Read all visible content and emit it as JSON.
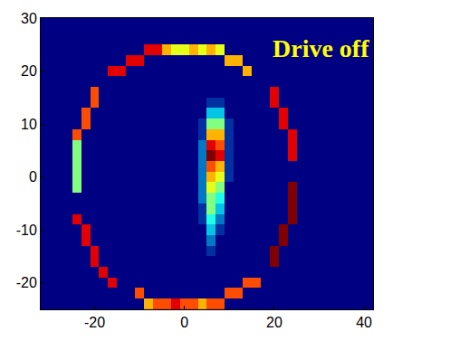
{
  "chart_data": {
    "type": "heatmap",
    "annotation": "Drive off",
    "xlim": [
      -32,
      42
    ],
    "ylim": [
      -25,
      30
    ],
    "xticks": [
      -20,
      0,
      20,
      40
    ],
    "yticks": [
      -20,
      -10,
      0,
      10,
      20,
      30
    ],
    "grid": false,
    "x": [
      -30,
      -28,
      -26,
      -24,
      -22,
      -20,
      -18,
      -16,
      -14,
      -12,
      -10,
      -8,
      -6,
      -4,
      -2,
      0,
      2,
      4,
      6,
      8,
      10,
      12,
      14,
      16,
      18,
      20,
      22,
      24,
      26,
      28,
      30,
      32,
      34,
      36,
      38,
      40
    ],
    "y": [
      -24,
      -22,
      -20,
      -18,
      -16,
      -14,
      -12,
      -10,
      -8,
      -6,
      -4,
      -2,
      0,
      2,
      4,
      6,
      8,
      10,
      12,
      14,
      16,
      18,
      20,
      22,
      24,
      26,
      28
    ],
    "cells": [
      [
        0,
        0,
        0,
        0,
        0,
        0,
        0,
        0,
        0,
        0,
        0,
        7,
        8,
        8,
        9,
        8,
        8,
        7,
        8,
        8,
        0,
        0,
        0,
        0,
        0,
        0,
        0,
        0,
        0,
        0,
        0,
        0,
        0,
        0,
        0,
        0
      ],
      [
        0,
        0,
        0,
        0,
        0,
        0,
        0,
        0,
        0,
        0,
        8,
        0,
        0,
        0,
        0,
        0,
        0,
        0,
        0,
        0,
        8,
        8,
        0,
        0,
        0,
        0,
        0,
        0,
        0,
        0,
        0,
        0,
        0,
        0,
        0,
        0
      ],
      [
        0,
        0,
        0,
        0,
        0,
        0,
        0,
        9,
        0,
        0,
        0,
        0,
        0,
        0,
        0,
        0,
        0,
        0,
        0,
        0,
        0,
        0,
        8,
        8,
        0,
        0,
        0,
        0,
        0,
        0,
        0,
        0,
        0,
        0,
        0,
        0
      ],
      [
        0,
        0,
        0,
        0,
        0,
        0,
        9,
        0,
        0,
        0,
        0,
        0,
        0,
        0,
        0,
        0,
        0,
        0,
        0,
        0,
        0,
        0,
        0,
        0,
        0,
        0,
        0,
        0,
        0,
        0,
        0,
        0,
        0,
        0,
        0,
        0
      ],
      [
        0,
        0,
        0,
        0,
        0,
        9,
        0,
        0,
        0,
        0,
        0,
        0,
        0,
        0,
        0,
        0,
        0,
        0,
        0,
        0,
        0,
        0,
        0,
        0,
        0,
        10,
        0,
        0,
        0,
        0,
        0,
        0,
        0,
        0,
        0,
        0
      ],
      [
        0,
        0,
        0,
        0,
        0,
        9,
        0,
        0,
        0,
        0,
        0,
        0,
        0,
        0,
        0,
        0,
        0,
        0,
        1,
        0,
        0,
        0,
        0,
        0,
        0,
        10,
        0,
        0,
        0,
        0,
        0,
        0,
        0,
        0,
        0,
        0
      ],
      [
        0,
        0,
        0,
        0,
        9,
        0,
        0,
        0,
        0,
        0,
        0,
        0,
        0,
        0,
        0,
        0,
        0,
        0,
        2,
        0,
        0,
        0,
        0,
        0,
        0,
        0,
        10,
        0,
        0,
        0,
        0,
        0,
        0,
        0,
        0,
        0
      ],
      [
        0,
        0,
        0,
        0,
        9,
        0,
        0,
        0,
        0,
        0,
        0,
        0,
        0,
        0,
        0,
        0,
        0,
        0,
        3,
        1,
        0,
        0,
        0,
        0,
        0,
        0,
        10,
        0,
        0,
        0,
        0,
        0,
        0,
        0,
        0,
        0
      ],
      [
        0,
        0,
        0,
        9,
        0,
        0,
        0,
        0,
        0,
        0,
        0,
        0,
        0,
        0,
        0,
        0,
        0,
        1,
        4,
        2,
        0,
        0,
        0,
        0,
        0,
        0,
        0,
        10,
        0,
        0,
        0,
        0,
        0,
        0,
        0,
        0
      ],
      [
        0,
        0,
        0,
        0,
        0,
        0,
        0,
        0,
        0,
        0,
        0,
        0,
        0,
        0,
        0,
        0,
        0,
        1,
        5,
        3,
        0,
        0,
        0,
        0,
        0,
        0,
        0,
        10,
        0,
        0,
        0,
        0,
        0,
        0,
        0,
        0
      ],
      [
        0,
        0,
        0,
        0,
        0,
        0,
        0,
        0,
        0,
        0,
        0,
        0,
        0,
        0,
        0,
        0,
        0,
        2,
        5,
        4,
        0,
        0,
        0,
        0,
        0,
        0,
        0,
        10,
        0,
        0,
        0,
        0,
        0,
        0,
        0,
        0
      ],
      [
        0,
        0,
        0,
        5,
        0,
        0,
        0,
        0,
        0,
        0,
        0,
        0,
        0,
        0,
        0,
        0,
        0,
        2,
        6,
        5,
        0,
        0,
        0,
        0,
        0,
        0,
        0,
        10,
        0,
        0,
        0,
        0,
        0,
        0,
        0,
        0
      ],
      [
        0,
        0,
        0,
        5,
        0,
        0,
        0,
        0,
        0,
        0,
        0,
        0,
        0,
        0,
        0,
        0,
        0,
        2,
        7,
        6,
        1,
        0,
        0,
        0,
        0,
        0,
        0,
        0,
        0,
        0,
        0,
        0,
        0,
        0,
        0,
        0
      ],
      [
        0,
        0,
        0,
        5,
        0,
        0,
        0,
        0,
        0,
        0,
        0,
        0,
        0,
        0,
        0,
        0,
        0,
        2,
        8,
        7,
        1,
        0,
        0,
        0,
        0,
        0,
        0,
        0,
        0,
        0,
        0,
        0,
        0,
        0,
        0,
        0
      ],
      [
        0,
        0,
        0,
        5,
        0,
        0,
        0,
        0,
        0,
        0,
        0,
        0,
        0,
        0,
        0,
        0,
        0,
        2,
        10,
        9,
        1,
        0,
        0,
        0,
        0,
        0,
        0,
        9,
        0,
        0,
        0,
        0,
        0,
        0,
        0,
        0
      ],
      [
        0,
        0,
        0,
        5,
        0,
        0,
        0,
        0,
        0,
        0,
        0,
        0,
        0,
        0,
        0,
        0,
        0,
        2,
        9,
        8,
        1,
        0,
        0,
        0,
        0,
        0,
        0,
        9,
        0,
        0,
        0,
        0,
        0,
        0,
        0,
        0
      ],
      [
        0,
        0,
        0,
        8,
        0,
        0,
        0,
        0,
        0,
        0,
        0,
        0,
        0,
        0,
        0,
        0,
        0,
        1,
        7,
        7,
        1,
        0,
        0,
        0,
        0,
        0,
        0,
        9,
        0,
        0,
        0,
        0,
        0,
        0,
        0,
        0
      ],
      [
        0,
        0,
        0,
        0,
        8,
        0,
        0,
        0,
        0,
        0,
        0,
        0,
        0,
        0,
        0,
        0,
        0,
        1,
        5,
        5,
        1,
        0,
        0,
        0,
        0,
        0,
        9,
        0,
        0,
        0,
        0,
        0,
        0,
        0,
        0,
        0
      ],
      [
        0,
        0,
        0,
        0,
        8,
        0,
        0,
        0,
        0,
        0,
        0,
        0,
        0,
        0,
        0,
        0,
        0,
        0,
        3,
        3,
        0,
        0,
        0,
        0,
        0,
        0,
        9,
        0,
        0,
        0,
        0,
        0,
        0,
        0,
        0,
        0
      ],
      [
        0,
        0,
        0,
        0,
        0,
        8,
        0,
        0,
        0,
        0,
        0,
        0,
        0,
        0,
        0,
        0,
        0,
        0,
        1,
        1,
        0,
        0,
        0,
        0,
        0,
        9,
        0,
        0,
        0,
        0,
        0,
        0,
        0,
        0,
        0,
        0
      ],
      [
        0,
        0,
        0,
        0,
        0,
        8,
        0,
        0,
        0,
        0,
        0,
        0,
        0,
        0,
        0,
        0,
        0,
        0,
        0,
        0,
        0,
        0,
        0,
        0,
        0,
        9,
        0,
        0,
        0,
        0,
        0,
        0,
        0,
        0,
        0,
        0
      ],
      [
        0,
        0,
        0,
        0,
        0,
        0,
        0,
        0,
        0,
        0,
        0,
        0,
        0,
        0,
        0,
        0,
        0,
        0,
        0,
        0,
        0,
        0,
        0,
        0,
        0,
        0,
        0,
        0,
        0,
        0,
        0,
        0,
        0,
        0,
        0,
        0
      ],
      [
        0,
        0,
        0,
        0,
        0,
        0,
        0,
        9,
        9,
        0,
        0,
        0,
        0,
        0,
        0,
        0,
        0,
        0,
        0,
        0,
        0,
        0,
        7,
        0,
        0,
        0,
        0,
        0,
        0,
        0,
        0,
        0,
        0,
        0,
        0,
        0
      ],
      [
        0,
        0,
        0,
        0,
        0,
        0,
        0,
        0,
        0,
        9,
        9,
        0,
        0,
        0,
        0,
        0,
        0,
        0,
        0,
        0,
        7,
        7,
        0,
        0,
        0,
        0,
        0,
        0,
        0,
        0,
        0,
        0,
        0,
        0,
        0,
        0
      ],
      [
        0,
        0,
        0,
        0,
        0,
        0,
        0,
        0,
        0,
        0,
        0,
        9,
        9,
        7,
        6,
        6,
        7,
        6,
        7,
        6,
        0,
        0,
        0,
        0,
        0,
        0,
        0,
        0,
        0,
        0,
        0,
        0,
        0,
        0,
        0,
        0
      ],
      [
        0,
        0,
        0,
        0,
        0,
        0,
        0,
        0,
        0,
        0,
        0,
        0,
        0,
        0,
        0,
        0,
        0,
        0,
        0,
        0,
        0,
        0,
        0,
        0,
        0,
        0,
        0,
        0,
        0,
        0,
        0,
        0,
        0,
        0,
        0,
        0
      ],
      [
        0,
        0,
        0,
        0,
        0,
        0,
        0,
        0,
        0,
        0,
        0,
        0,
        0,
        0,
        0,
        0,
        0,
        0,
        0,
        0,
        0,
        0,
        0,
        0,
        0,
        0,
        0,
        0,
        0,
        0,
        0,
        0,
        0,
        0,
        0,
        0
      ]
    ]
  }
}
